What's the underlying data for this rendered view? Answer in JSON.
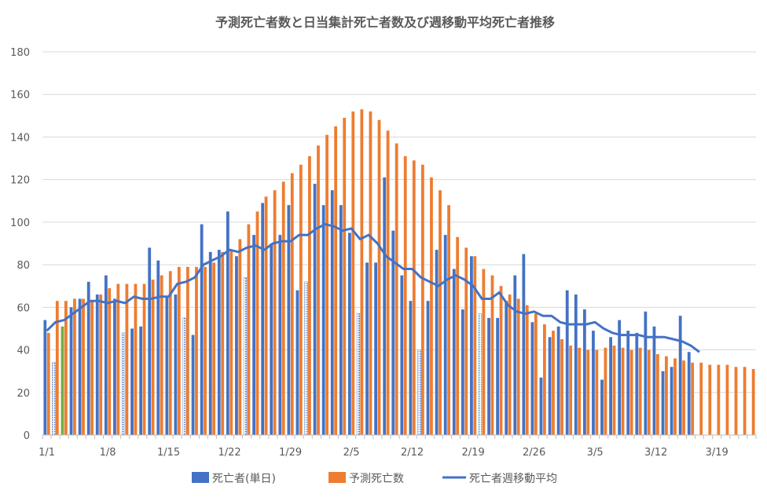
{
  "chart_data": {
    "type": "bar",
    "title": "予測死亡者数と日当集計死亡者数及び週移動平均死亡者推移",
    "xlabel": "",
    "ylabel": "",
    "ylim": [
      0,
      180
    ],
    "yticks": [
      0,
      20,
      40,
      60,
      80,
      100,
      120,
      140,
      160,
      180
    ],
    "grid": true,
    "legend_position": "bottom",
    "x_tick_labels": [
      "1/1",
      "1/8",
      "1/15",
      "1/22",
      "1/29",
      "2/5",
      "2/12",
      "2/19",
      "2/26",
      "3/5",
      "3/12",
      "3/19"
    ],
    "x_tick_day_index": [
      0,
      7,
      14,
      21,
      28,
      35,
      42,
      49,
      56,
      63,
      70,
      77
    ],
    "days": 82,
    "colors": {
      "deaths": "#4472C4",
      "predicted": "#ED7D31",
      "moving_average": "#4472C4",
      "highlight": "#70AD47",
      "grid": "#D9D9D9",
      "axis": "#BFBFBF"
    },
    "series": [
      {
        "name": "死亡者(単日)",
        "kind": "bar",
        "values": [
          54,
          34,
          51,
          60,
          64,
          72,
          66,
          75,
          64,
          48,
          50,
          51,
          88,
          82,
          65,
          66,
          55,
          47,
          99,
          86,
          87,
          105,
          84,
          74,
          94,
          109,
          90,
          94,
          108,
          68,
          72,
          118,
          108,
          115,
          108,
          95,
          57,
          81,
          81,
          121,
          96,
          75,
          63,
          40,
          63,
          87,
          94,
          78,
          59,
          84,
          57,
          55,
          55,
          63,
          75,
          85,
          53,
          27,
          46,
          51,
          68,
          66,
          59,
          49,
          26,
          46,
          54,
          49,
          48,
          58,
          51,
          30,
          32,
          56,
          39
        ],
        "special_styles": {
          "1": "dotted",
          "2": "green",
          "9": "dotted",
          "16": "dotted",
          "23": "dotted",
          "30": "dotted",
          "36": "dotted",
          "43": "dotted",
          "50": "dotted-cyan"
        }
      },
      {
        "name": "予測死亡数",
        "kind": "bar",
        "values": [
          48,
          63,
          63,
          64,
          64,
          63,
          66,
          69,
          71,
          71,
          71,
          71,
          73,
          75,
          77,
          79,
          79,
          79,
          79,
          81,
          86,
          87,
          92,
          99,
          105,
          112,
          115,
          119,
          123,
          127,
          131,
          136,
          141,
          145,
          149,
          152,
          153,
          152,
          148,
          143,
          137,
          131,
          129,
          127,
          121,
          115,
          108,
          93,
          88,
          84,
          78,
          75,
          70,
          66,
          64,
          61,
          57,
          52,
          49,
          45,
          42,
          41,
          40,
          40,
          41,
          42,
          41,
          40,
          41,
          40,
          38,
          37,
          36,
          35,
          34,
          34,
          33,
          33,
          33,
          32,
          32,
          31
        ],
        "special_styles": {}
      },
      {
        "name": "死亡者週移動平均",
        "kind": "line",
        "values": [
          49,
          53,
          54,
          57,
          60,
          63,
          63,
          62,
          63,
          62,
          65,
          64,
          64,
          65,
          65,
          71,
          72,
          74,
          80,
          82,
          84,
          87,
          86,
          88,
          89,
          87,
          90,
          91,
          91,
          94,
          94,
          97,
          99,
          98,
          96,
          97,
          92,
          94,
          90,
          84,
          81,
          78,
          78,
          74,
          72,
          70,
          73,
          75,
          73,
          70,
          64,
          64,
          67,
          61,
          58,
          57,
          58,
          56,
          56,
          53,
          52,
          52,
          52,
          53,
          50,
          48,
          47,
          47,
          47,
          46,
          46,
          46,
          45,
          44,
          42,
          39
        ]
      }
    ]
  }
}
